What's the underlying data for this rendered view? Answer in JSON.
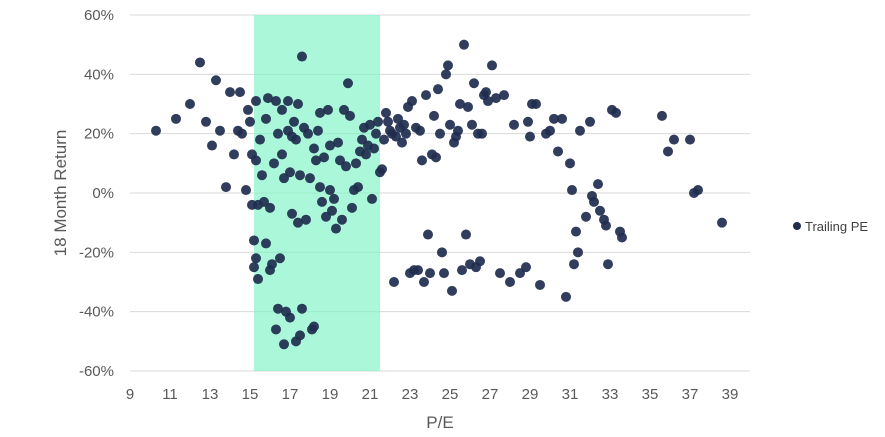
{
  "chart_data": {
    "type": "scatter",
    "xlabel": "P/E",
    "ylabel": "18 Month Return",
    "xlim": [
      9,
      40
    ],
    "ylim": [
      -60,
      60
    ],
    "x_ticks": [
      9,
      11,
      13,
      15,
      17,
      19,
      21,
      23,
      25,
      27,
      29,
      31,
      33,
      35,
      37,
      39
    ],
    "y_ticks": [
      -60,
      -40,
      -20,
      0,
      20,
      40,
      60
    ],
    "y_tick_labels": [
      "-60%",
      "-40%",
      "-20%",
      "0%",
      "20%",
      "40%",
      "60%"
    ],
    "grid": "horizontal",
    "legend_position": "right",
    "colors": {
      "series": "#1f2d4e",
      "highlight": "#7cf5c4",
      "grid": "#d9d9d9",
      "text": "#595959"
    },
    "highlight_range": [
      15.2,
      21.5
    ],
    "series": [
      {
        "name": "Trailing PE",
        "points": [
          [
            10.3,
            21
          ],
          [
            11.3,
            25
          ],
          [
            12,
            30
          ],
          [
            12.5,
            44
          ],
          [
            12.8,
            24
          ],
          [
            13.1,
            16
          ],
          [
            13.3,
            38
          ],
          [
            13.5,
            21
          ],
          [
            13.8,
            2
          ],
          [
            14,
            34
          ],
          [
            14.2,
            13
          ],
          [
            14.4,
            21
          ],
          [
            14.5,
            34
          ],
          [
            14.6,
            20
          ],
          [
            14.8,
            1
          ],
          [
            14.9,
            28
          ],
          [
            15,
            24
          ],
          [
            15.1,
            13
          ],
          [
            15.1,
            -4
          ],
          [
            15.2,
            -16
          ],
          [
            15.2,
            -25
          ],
          [
            15.3,
            31
          ],
          [
            15.3,
            11
          ],
          [
            15.3,
            -22
          ],
          [
            15.4,
            -29
          ],
          [
            15.4,
            -4
          ],
          [
            15.5,
            18
          ],
          [
            15.6,
            6
          ],
          [
            15.7,
            -3
          ],
          [
            15.8,
            -17
          ],
          [
            15.8,
            25
          ],
          [
            15.9,
            32
          ],
          [
            16,
            -5
          ],
          [
            16,
            -26
          ],
          [
            16.1,
            -24
          ],
          [
            16.2,
            10
          ],
          [
            16.3,
            31
          ],
          [
            16.3,
            -46
          ],
          [
            16.4,
            20
          ],
          [
            16.4,
            -39
          ],
          [
            16.5,
            -22
          ],
          [
            16.6,
            13
          ],
          [
            16.6,
            28
          ],
          [
            16.7,
            5
          ],
          [
            16.7,
            -51
          ],
          [
            16.8,
            -40
          ],
          [
            16.9,
            31
          ],
          [
            16.9,
            21
          ],
          [
            17,
            -42
          ],
          [
            17,
            7
          ],
          [
            17.1,
            19
          ],
          [
            17.1,
            -7
          ],
          [
            17.2,
            24
          ],
          [
            17.3,
            -50
          ],
          [
            17.3,
            18
          ],
          [
            17.4,
            -10
          ],
          [
            17.4,
            30
          ],
          [
            17.5,
            -48
          ],
          [
            17.5,
            6
          ],
          [
            17.6,
            46
          ],
          [
            17.6,
            -39
          ],
          [
            17.7,
            22
          ],
          [
            17.8,
            -9
          ],
          [
            17.9,
            20
          ],
          [
            18,
            5
          ],
          [
            18.1,
            -46
          ],
          [
            18.2,
            -45
          ],
          [
            18.2,
            15
          ],
          [
            18.3,
            11
          ],
          [
            18.4,
            21
          ],
          [
            18.5,
            2
          ],
          [
            18.5,
            27
          ],
          [
            18.6,
            -3
          ],
          [
            18.7,
            12
          ],
          [
            18.8,
            -8
          ],
          [
            18.9,
            28
          ],
          [
            19,
            1
          ],
          [
            19,
            16
          ],
          [
            19.1,
            -6
          ],
          [
            19.2,
            -2
          ],
          [
            19.3,
            -12
          ],
          [
            19.4,
            17
          ],
          [
            19.5,
            11
          ],
          [
            19.6,
            -9
          ],
          [
            19.7,
            28
          ],
          [
            19.8,
            9
          ],
          [
            19.9,
            37
          ],
          [
            20,
            26
          ],
          [
            20.1,
            -5
          ],
          [
            20.2,
            1
          ],
          [
            20.3,
            10
          ],
          [
            20.4,
            2
          ],
          [
            20.5,
            14
          ],
          [
            20.6,
            18
          ],
          [
            20.7,
            22
          ],
          [
            20.8,
            13
          ],
          [
            20.9,
            16
          ],
          [
            21,
            23
          ],
          [
            21.1,
            -2
          ],
          [
            21.2,
            15
          ],
          [
            21.3,
            20
          ],
          [
            21.4,
            24
          ],
          [
            21.5,
            7
          ],
          [
            21.6,
            8
          ],
          [
            21.7,
            18
          ],
          [
            21.8,
            27
          ],
          [
            21.9,
            24
          ],
          [
            22,
            21
          ],
          [
            22.1,
            20
          ],
          [
            22.2,
            -30
          ],
          [
            22.3,
            19
          ],
          [
            22.4,
            25
          ],
          [
            22.5,
            22
          ],
          [
            22.6,
            17
          ],
          [
            22.7,
            23
          ],
          [
            22.8,
            20
          ],
          [
            22.9,
            29
          ],
          [
            23,
            -27
          ],
          [
            23.1,
            31
          ],
          [
            23.2,
            -26
          ],
          [
            23.3,
            22
          ],
          [
            23.4,
            -26
          ],
          [
            23.5,
            21
          ],
          [
            23.6,
            11
          ],
          [
            23.7,
            -30
          ],
          [
            23.8,
            33
          ],
          [
            23.9,
            -14
          ],
          [
            24,
            -27
          ],
          [
            24.1,
            13
          ],
          [
            24.2,
            26
          ],
          [
            24.3,
            12
          ],
          [
            24.4,
            35
          ],
          [
            24.5,
            20
          ],
          [
            24.6,
            -20
          ],
          [
            24.7,
            -27
          ],
          [
            24.8,
            40
          ],
          [
            24.9,
            43
          ],
          [
            25,
            23
          ],
          [
            25.1,
            -33
          ],
          [
            25.2,
            17
          ],
          [
            25.3,
            19
          ],
          [
            25.4,
            21
          ],
          [
            25.5,
            30
          ],
          [
            25.6,
            -26
          ],
          [
            25.7,
            50
          ],
          [
            25.8,
            -14
          ],
          [
            25.9,
            29
          ],
          [
            26,
            -24
          ],
          [
            26.1,
            23
          ],
          [
            26.2,
            37
          ],
          [
            26.3,
            -25
          ],
          [
            26.4,
            20
          ],
          [
            26.5,
            -23
          ],
          [
            26.6,
            20
          ],
          [
            26.7,
            33
          ],
          [
            26.8,
            34
          ],
          [
            26.9,
            31
          ],
          [
            27.1,
            43
          ],
          [
            27.3,
            32
          ],
          [
            27.5,
            -27
          ],
          [
            27.7,
            33
          ],
          [
            28,
            -30
          ],
          [
            28.2,
            23
          ],
          [
            28.5,
            -27
          ],
          [
            28.8,
            -25
          ],
          [
            28.9,
            24
          ],
          [
            29,
            19
          ],
          [
            29.1,
            30
          ],
          [
            29.3,
            30
          ],
          [
            29.5,
            -31
          ],
          [
            29.8,
            20
          ],
          [
            30,
            21
          ],
          [
            30.2,
            25
          ],
          [
            30.4,
            14
          ],
          [
            30.6,
            25
          ],
          [
            30.8,
            -35
          ],
          [
            31,
            10
          ],
          [
            31.1,
            1
          ],
          [
            31.2,
            -24
          ],
          [
            31.3,
            -13
          ],
          [
            31.4,
            -20
          ],
          [
            31.5,
            21
          ],
          [
            31.8,
            -8
          ],
          [
            32,
            24
          ],
          [
            32.1,
            -1
          ],
          [
            32.2,
            -3
          ],
          [
            32.4,
            3
          ],
          [
            32.5,
            -6
          ],
          [
            32.7,
            -9
          ],
          [
            32.8,
            -11
          ],
          [
            32.9,
            -24
          ],
          [
            33.1,
            28
          ],
          [
            33.3,
            27
          ],
          [
            33.5,
            -13
          ],
          [
            33.6,
            -15
          ],
          [
            35.6,
            26
          ],
          [
            35.9,
            14
          ],
          [
            36.2,
            18
          ],
          [
            37,
            18
          ],
          [
            37.2,
            0
          ],
          [
            37.4,
            1
          ],
          [
            38.6,
            -10
          ]
        ]
      }
    ]
  }
}
